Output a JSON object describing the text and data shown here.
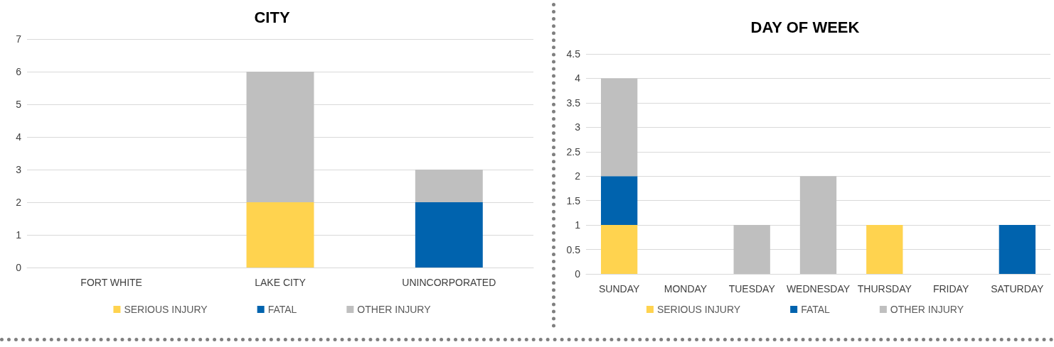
{
  "chart_data": [
    {
      "type": "bar",
      "title": "CITY",
      "categories": [
        "FORT WHITE",
        "LAKE CITY",
        "UNINCORPORATED"
      ],
      "stacked": true,
      "ylim": [
        0,
        7
      ],
      "yticks": [
        0,
        1,
        2,
        3,
        4,
        5,
        6,
        7
      ],
      "grid": "y",
      "legend": "bottom",
      "series": [
        {
          "name": "SERIOUS INJURY",
          "color": "#ffd34f",
          "values": [
            0,
            2,
            0
          ]
        },
        {
          "name": "FATAL",
          "color": "#0063ae",
          "values": [
            0,
            0,
            2
          ]
        },
        {
          "name": "OTHER INJURY",
          "color": "#bfbfbf",
          "values": [
            0,
            4,
            1
          ]
        }
      ]
    },
    {
      "type": "bar",
      "title": "DAY OF WEEK",
      "categories": [
        "SUNDAY",
        "MONDAY",
        "TUESDAY",
        "WEDNESDAY",
        "THURSDAY",
        "FRIDAY",
        "SATURDAY"
      ],
      "stacked": true,
      "ylim": [
        0,
        4.5
      ],
      "yticks": [
        0,
        0.5,
        1,
        1.5,
        2,
        2.5,
        3,
        3.5,
        4,
        4.5
      ],
      "grid": "y",
      "legend": "bottom",
      "series": [
        {
          "name": "SERIOUS INJURY",
          "color": "#ffd34f",
          "values": [
            1,
            0,
            0,
            0,
            1,
            0,
            0
          ]
        },
        {
          "name": "FATAL",
          "color": "#0063ae",
          "values": [
            1,
            0,
            0,
            0,
            0,
            0,
            1
          ]
        },
        {
          "name": "OTHER INJURY",
          "color": "#bfbfbf",
          "values": [
            2,
            0,
            1,
            2,
            0,
            0,
            0
          ]
        }
      ]
    }
  ]
}
